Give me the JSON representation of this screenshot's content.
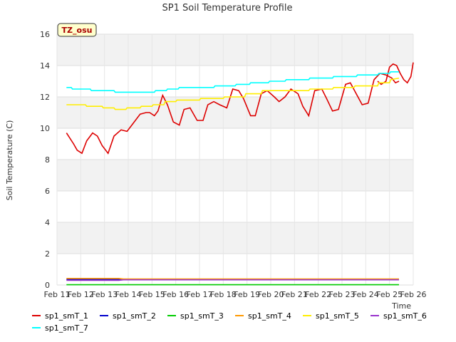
{
  "chart_data": {
    "type": "line",
    "title": "SP1 Soil Temperature Profile",
    "xlabel": "Time",
    "ylabel": "Soil Temperature (C)",
    "ylim": [
      0,
      16
    ],
    "xlim": [
      "2024-02-11",
      "2024-02-26"
    ],
    "yticks": [
      0,
      2,
      4,
      6,
      8,
      10,
      12,
      14,
      16
    ],
    "xticks": [
      "Feb 11",
      "Feb 12",
      "Feb 13",
      "Feb 14",
      "Feb 15",
      "Feb 16",
      "Feb 17",
      "Feb 18",
      "Feb 19",
      "Feb 20",
      "Feb 21",
      "Feb 22",
      "Feb 23",
      "Feb 24",
      "Feb 25",
      "Feb 26"
    ],
    "x_unit": "day of February",
    "grid": true,
    "legend_placement": "bottom",
    "badge": "TZ_osu",
    "series": [
      {
        "name": "sp1_smT_1",
        "color": "#dd0000",
        "x": [
          11.4,
          11.7,
          11.85,
          12.05,
          12.25,
          12.5,
          12.7,
          12.9,
          13.15,
          13.4,
          13.7,
          13.95,
          14.2,
          14.5,
          14.75,
          14.9,
          15.1,
          15.25,
          15.45,
          15.65,
          15.9,
          16.15,
          16.35,
          16.6,
          16.9,
          17.15,
          17.35,
          17.6,
          17.85,
          18.15,
          18.4,
          18.65,
          18.85,
          19.15,
          19.35,
          19.6,
          19.85,
          20.15,
          20.35,
          20.6,
          20.85,
          21.15,
          21.35,
          21.6,
          21.85,
          22.15,
          22.35,
          22.6,
          22.85,
          23.15,
          23.35,
          23.6,
          23.85,
          24.1,
          24.35,
          24.6,
          24.85,
          25.1,
          25.25,
          25.4
        ],
        "y": [
          9.7,
          9.0,
          8.6,
          8.4,
          9.2,
          9.7,
          9.5,
          8.9,
          8.4,
          9.5,
          9.9,
          9.8,
          10.3,
          10.9,
          11.0,
          11.0,
          10.8,
          11.1,
          12.1,
          11.5,
          10.4,
          10.2,
          11.2,
          11.3,
          10.5,
          10.5,
          11.5,
          11.7,
          11.5,
          11.3,
          12.5,
          12.4,
          11.9,
          10.8,
          10.8,
          12.2,
          12.4,
          12.0,
          11.7,
          12.0,
          12.5,
          12.2,
          11.4,
          10.8,
          12.4,
          12.5,
          11.9,
          11.1,
          11.2,
          12.8,
          12.9,
          12.2,
          11.5,
          11.6,
          13.1,
          13.5,
          13.4,
          13.2,
          12.9,
          13.0
        ],
        "tail_x": [
          24.5,
          24.65,
          24.85,
          25.0,
          25.15,
          25.3,
          25.45,
          25.6,
          25.75,
          25.9,
          26.0
        ],
        "tail_y": [
          13.0,
          12.8,
          13.0,
          13.9,
          14.1,
          14.0,
          13.5,
          13.1,
          12.9,
          13.3,
          14.2
        ]
      },
      {
        "name": "sp1_smT_2",
        "color": "#0000cc",
        "x": [
          11.4,
          25.4
        ],
        "y": [
          0.35,
          0.35
        ]
      },
      {
        "name": "sp1_smT_3",
        "color": "#00cc00",
        "x": [
          11.4,
          25.4
        ],
        "y": [
          0.02,
          0.02
        ]
      },
      {
        "name": "sp1_smT_4",
        "color": "#ff9900",
        "x": [
          11.4,
          13.6,
          13.8,
          25.4
        ],
        "y": [
          0.42,
          0.42,
          0.38,
          0.38
        ]
      },
      {
        "name": "sp1_smT_5",
        "color": "#ffee00",
        "x": [
          11.4,
          12.2,
          12.25,
          12.9,
          12.95,
          13.4,
          13.45,
          13.9,
          13.95,
          14.5,
          14.55,
          15.0,
          15.05,
          15.5,
          15.55,
          16.0,
          16.05,
          17.0,
          17.05,
          18.0,
          18.05,
          18.9,
          18.95,
          19.6,
          19.65,
          20.9,
          20.95,
          21.6,
          21.65,
          22.6,
          22.65,
          23.5,
          23.55,
          24.5,
          24.55,
          25.0,
          25.05,
          25.4
        ],
        "y": [
          11.5,
          11.5,
          11.4,
          11.4,
          11.3,
          11.3,
          11.2,
          11.2,
          11.3,
          11.3,
          11.4,
          11.4,
          11.5,
          11.5,
          11.7,
          11.7,
          11.8,
          11.8,
          11.9,
          11.9,
          12.0,
          12.0,
          12.2,
          12.2,
          12.4,
          12.4,
          12.4,
          12.4,
          12.5,
          12.5,
          12.6,
          12.6,
          12.7,
          12.7,
          12.9,
          12.9,
          13.1,
          13.2
        ]
      },
      {
        "name": "sp1_smT_6",
        "color": "#9933cc",
        "x": [
          11.4,
          13.6,
          13.8,
          25.4
        ],
        "y": [
          0.3,
          0.3,
          0.33,
          0.33
        ]
      },
      {
        "name": "sp1_smT_7",
        "color": "#00ffff",
        "x": [
          11.4,
          11.6,
          11.65,
          12.4,
          12.45,
          13.4,
          13.45,
          15.1,
          15.15,
          15.6,
          15.65,
          16.1,
          16.15,
          17.6,
          17.65,
          18.5,
          18.55,
          19.1,
          19.15,
          19.9,
          19.95,
          20.6,
          20.65,
          21.6,
          21.65,
          22.6,
          22.65,
          23.6,
          23.65,
          24.5,
          24.55,
          25.0,
          25.05,
          25.4
        ],
        "y": [
          12.6,
          12.6,
          12.5,
          12.5,
          12.4,
          12.4,
          12.3,
          12.3,
          12.4,
          12.4,
          12.5,
          12.5,
          12.6,
          12.6,
          12.7,
          12.7,
          12.8,
          12.8,
          12.9,
          12.9,
          13.0,
          13.0,
          13.1,
          13.1,
          13.2,
          13.2,
          13.3,
          13.3,
          13.4,
          13.4,
          13.5,
          13.5,
          13.6,
          13.6
        ]
      }
    ]
  }
}
